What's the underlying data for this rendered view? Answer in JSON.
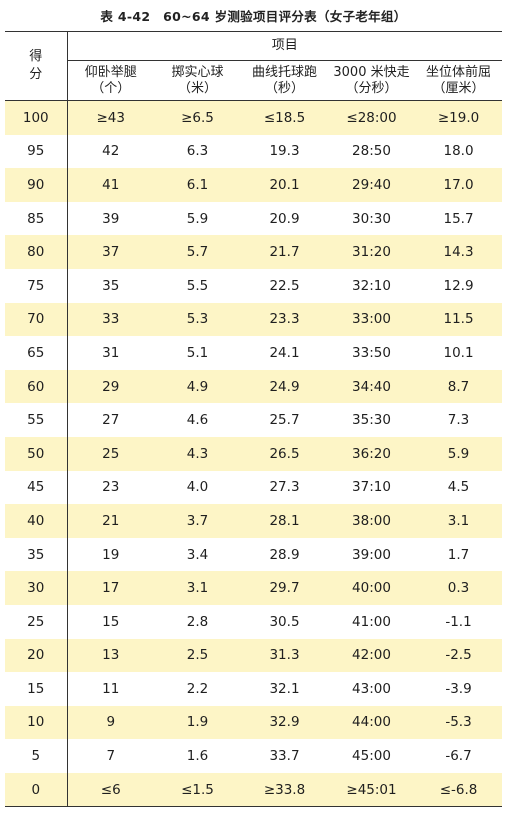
{
  "caption": "表 4-42　60~64 岁测验项目评分表（女子老年组）",
  "header": {
    "score_label_1": "得",
    "score_label_2": "分",
    "project_label": "项目",
    "columns": [
      {
        "name": "仰卧举腿",
        "unit": "（个）"
      },
      {
        "name": "掷实心球",
        "unit": "（米）"
      },
      {
        "name": "曲线托球跑",
        "unit": "（秒）"
      },
      {
        "name": "3000 米快走",
        "unit": "（分秒）"
      },
      {
        "name": "坐位体前屈",
        "unit": "（厘米）"
      }
    ]
  },
  "highlight_color": "#fdf5c6",
  "rows": [
    [
      "100",
      "≥43",
      "≥6.5",
      "≤18.5",
      "≤28:00",
      "≥19.0"
    ],
    [
      "95",
      "42",
      "6.3",
      "19.3",
      "28:50",
      "18.0"
    ],
    [
      "90",
      "41",
      "6.1",
      "20.1",
      "29:40",
      "17.0"
    ],
    [
      "85",
      "39",
      "5.9",
      "20.9",
      "30:30",
      "15.7"
    ],
    [
      "80",
      "37",
      "5.7",
      "21.7",
      "31:20",
      "14.3"
    ],
    [
      "75",
      "35",
      "5.5",
      "22.5",
      "32:10",
      "12.9"
    ],
    [
      "70",
      "33",
      "5.3",
      "23.3",
      "33:00",
      "11.5"
    ],
    [
      "65",
      "31",
      "5.1",
      "24.1",
      "33:50",
      "10.1"
    ],
    [
      "60",
      "29",
      "4.9",
      "24.9",
      "34:40",
      "8.7"
    ],
    [
      "55",
      "27",
      "4.6",
      "25.7",
      "35:30",
      "7.3"
    ],
    [
      "50",
      "25",
      "4.3",
      "26.5",
      "36:20",
      "5.9"
    ],
    [
      "45",
      "23",
      "4.0",
      "27.3",
      "37:10",
      "4.5"
    ],
    [
      "40",
      "21",
      "3.7",
      "28.1",
      "38:00",
      "3.1"
    ],
    [
      "35",
      "19",
      "3.4",
      "28.9",
      "39:00",
      "1.7"
    ],
    [
      "30",
      "17",
      "3.1",
      "29.7",
      "40:00",
      "0.3"
    ],
    [
      "25",
      "15",
      "2.8",
      "30.5",
      "41:00",
      "-1.1"
    ],
    [
      "20",
      "13",
      "2.5",
      "31.3",
      "42:00",
      "-2.5"
    ],
    [
      "15",
      "11",
      "2.2",
      "32.1",
      "43:00",
      "-3.9"
    ],
    [
      "10",
      "9",
      "1.9",
      "32.9",
      "44:00",
      "-5.3"
    ],
    [
      "5",
      "7",
      "1.6",
      "33.7",
      "45:00",
      "-6.7"
    ],
    [
      "0",
      "≤6",
      "≤1.5",
      "≥33.8",
      "≥45:01",
      "≤-6.8"
    ]
  ]
}
